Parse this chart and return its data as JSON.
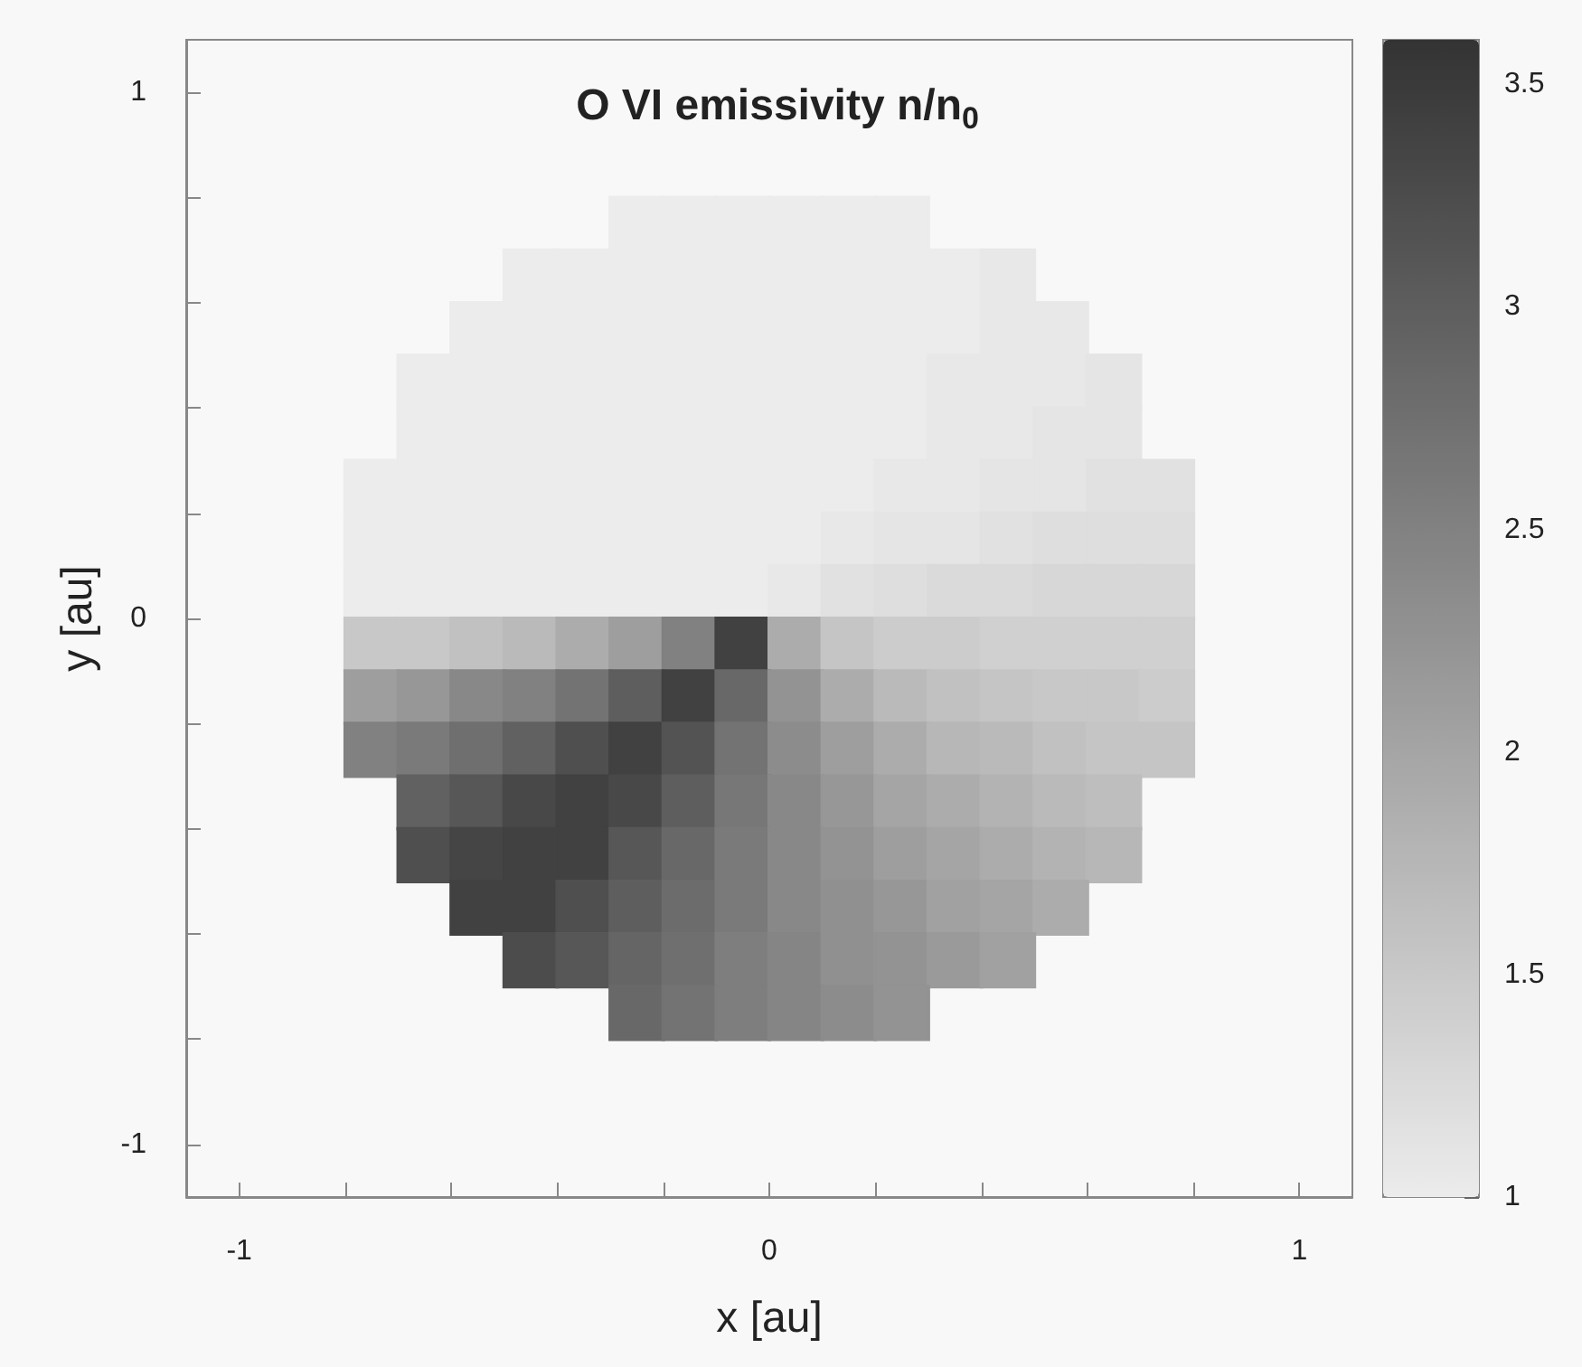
{
  "chart_data": {
    "type": "scatter",
    "marker": "square",
    "title": "O VI emissivity n/n$_{0}$",
    "xlabel": "x [au]",
    "ylabel": "y [au]",
    "xlim": [
      -1.1,
      1.1
    ],
    "xticks": [
      -1,
      {
        "value": -0.8,
        "label": null
      },
      {
        "value": -0.6,
        "label": null
      },
      {
        "value": -0.4,
        "label": null
      },
      {
        "value": -0.2,
        "label": null
      },
      0,
      {
        "value": 0.2,
        "label": null
      },
      {
        "value": 0.4,
        "label": null
      },
      {
        "value": 0.6,
        "label": null
      },
      {
        "value": 0.8,
        "label": null
      },
      1
    ],
    "ylim": [
      -1.1,
      1.1
    ],
    "yticks": [
      -1,
      {
        "value": -0.8,
        "label": null
      },
      {
        "value": -0.6,
        "label": null
      },
      {
        "value": -0.4,
        "label": null
      },
      {
        "value": -0.2,
        "label": null
      },
      0,
      {
        "value": 0.2,
        "label": null
      },
      {
        "value": 0.4,
        "label": null
      },
      {
        "value": 0.6,
        "label": null
      },
      {
        "value": 0.8,
        "label": null
      },
      1
    ],
    "clim": [
      1,
      3.6
    ],
    "cticks": [
      1,
      1.5,
      2,
      2.5,
      3,
      3.5
    ],
    "series": [
      {
        "x": [
          -0.25,
          -0.15,
          -0.05,
          0.05,
          0.15,
          0.25
        ],
        "values": [
          0.75,
          0.75,
          0.75,
          0.75,
          0.75,
          0.75
        ],
        "cvalues": [
          1,
          1,
          1,
          1,
          1,
          1
        ],
        "colors": [
          "#ececec",
          "#ececec",
          "#ececec",
          "#ececec",
          "#ececec",
          "#ececec"
        ]
      },
      {
        "x": [
          -0.45,
          -0.35,
          -0.25,
          -0.15,
          -0.05,
          0.05,
          0.15,
          0.25,
          0.35,
          0.45
        ],
        "values": [
          0.65,
          0.65,
          0.65,
          0.65,
          0.65,
          0.65,
          0.65,
          0.65,
          0.65,
          0.65
        ],
        "cvalues": [
          1,
          1,
          1,
          1,
          1,
          1,
          1,
          1,
          1,
          1.05
        ],
        "colors": [
          "#ececec",
          "#ececec",
          "#ececec",
          "#ececec",
          "#ececec",
          "#ececec",
          "#ececec",
          "#ececec",
          "#ececec",
          "#e8e8e8"
        ]
      },
      {
        "x": [
          -0.55,
          -0.45,
          -0.35,
          -0.25,
          -0.15,
          -0.05,
          0.05,
          0.15,
          0.25,
          0.35,
          0.45,
          0.55
        ],
        "values": [
          0.55,
          0.55,
          0.55,
          0.55,
          0.55,
          0.55,
          0.55,
          0.55,
          0.55,
          0.55,
          0.55,
          0.55
        ],
        "cvalues": [
          1,
          1,
          1,
          1,
          1,
          1,
          1,
          1,
          1,
          1,
          1.05,
          1.05
        ],
        "colors": [
          "#ececec",
          "#ececec",
          "#ececec",
          "#ececec",
          "#ececec",
          "#ececec",
          "#ececec",
          "#ececec",
          "#ececec",
          "#ececec",
          "#e8e8e8",
          "#e8e8e8"
        ]
      },
      {
        "x": [
          -0.65,
          -0.55,
          -0.45,
          -0.35,
          -0.25,
          -0.15,
          -0.05,
          0.05,
          0.15,
          0.25,
          0.35,
          0.45,
          0.55,
          0.65
        ],
        "values": [
          0.45,
          0.45,
          0.45,
          0.45,
          0.45,
          0.45,
          0.45,
          0.45,
          0.45,
          0.45,
          0.45,
          0.45,
          0.45,
          0.45
        ],
        "cvalues": [
          1,
          1,
          1,
          1,
          1,
          1,
          1,
          1,
          1,
          1,
          1.05,
          1.05,
          1.05,
          1.1
        ],
        "colors": [
          "#ececec",
          "#ececec",
          "#ececec",
          "#ececec",
          "#ececec",
          "#ececec",
          "#ececec",
          "#ececec",
          "#ececec",
          "#ececec",
          "#e8e8e8",
          "#e8e8e8",
          "#e8e8e8",
          "#e5e5e5"
        ]
      },
      {
        "x": [
          -0.65,
          -0.55,
          -0.45,
          -0.35,
          -0.25,
          -0.15,
          -0.05,
          0.05,
          0.15,
          0.25,
          0.35,
          0.45,
          0.55,
          0.65
        ],
        "values": [
          0.35,
          0.35,
          0.35,
          0.35,
          0.35,
          0.35,
          0.35,
          0.35,
          0.35,
          0.35,
          0.35,
          0.35,
          0.35,
          0.35
        ],
        "cvalues": [
          1,
          1,
          1,
          1,
          1,
          1,
          1,
          1,
          1,
          1,
          1.05,
          1.05,
          1.1,
          1.1
        ],
        "colors": [
          "#ececec",
          "#ececec",
          "#ececec",
          "#ececec",
          "#ececec",
          "#ececec",
          "#ececec",
          "#ececec",
          "#ececec",
          "#ececec",
          "#e8e8e8",
          "#e8e8e8",
          "#e5e5e5",
          "#e5e5e5"
        ]
      },
      {
        "x": [
          -0.75,
          -0.65,
          -0.55,
          -0.45,
          -0.35,
          -0.25,
          -0.15,
          -0.05,
          0.05,
          0.15,
          0.25,
          0.35,
          0.45,
          0.55,
          0.65,
          0.75
        ],
        "values": [
          0.25,
          0.25,
          0.25,
          0.25,
          0.25,
          0.25,
          0.25,
          0.25,
          0.25,
          0.25,
          0.25,
          0.25,
          0.25,
          0.25,
          0.25,
          0.25
        ],
        "cvalues": [
          1,
          1,
          1,
          1,
          1,
          1,
          1,
          1,
          1,
          1,
          1.05,
          1.05,
          1.1,
          1.1,
          1.15,
          1.15
        ],
        "colors": [
          "#ececec",
          "#ececec",
          "#ececec",
          "#ececec",
          "#ececec",
          "#ececec",
          "#ececec",
          "#ececec",
          "#ececec",
          "#ececec",
          "#e8e8e8",
          "#e8e8e8",
          "#e5e5e5",
          "#e5e5e5",
          "#e1e1e1",
          "#e1e1e1"
        ]
      },
      {
        "x": [
          -0.75,
          -0.65,
          -0.55,
          -0.45,
          -0.35,
          -0.25,
          -0.15,
          -0.05,
          0.05,
          0.15,
          0.25,
          0.35,
          0.45,
          0.55,
          0.65,
          0.75
        ],
        "values": [
          0.15,
          0.15,
          0.15,
          0.15,
          0.15,
          0.15,
          0.15,
          0.15,
          0.15,
          0.15,
          0.15,
          0.15,
          0.15,
          0.15,
          0.15,
          0.15
        ],
        "cvalues": [
          1,
          1,
          1,
          1,
          1,
          1,
          1,
          1,
          1,
          1.05,
          1.1,
          1.1,
          1.15,
          1.2,
          1.2,
          1.2
        ],
        "colors": [
          "#ececec",
          "#ececec",
          "#ececec",
          "#ececec",
          "#ececec",
          "#ececec",
          "#ececec",
          "#ececec",
          "#ececec",
          "#e8e8e8",
          "#e5e5e5",
          "#e5e5e5",
          "#e1e1e1",
          "#dedede",
          "#dedede",
          "#dedede"
        ]
      },
      {
        "x": [
          -0.75,
          -0.65,
          -0.55,
          -0.45,
          -0.35,
          -0.25,
          -0.15,
          -0.05,
          0.05,
          0.15,
          0.25,
          0.35,
          0.45,
          0.55,
          0.65,
          0.75
        ],
        "values": [
          0.05,
          0.05,
          0.05,
          0.05,
          0.05,
          0.05,
          0.05,
          0.05,
          0.05,
          0.05,
          0.05,
          0.05,
          0.05,
          0.05,
          0.05,
          0.05
        ],
        "cvalues": [
          1,
          1,
          1,
          1,
          1,
          1,
          1,
          1,
          1.05,
          1.15,
          1.2,
          1.25,
          1.25,
          1.3,
          1.3,
          1.3
        ],
        "colors": [
          "#ececec",
          "#ececec",
          "#ececec",
          "#ececec",
          "#ececec",
          "#ececec",
          "#ececec",
          "#ececec",
          "#e8e8e8",
          "#e1e1e1",
          "#dedede",
          "#dadada",
          "#dadada",
          "#d7d7d7",
          "#d7d7d7",
          "#d7d7d7"
        ]
      },
      {
        "x": [
          -0.75,
          -0.65,
          -0.55,
          -0.45,
          -0.35,
          -0.25,
          -0.15,
          -0.05,
          0.05,
          0.15,
          0.25,
          0.35,
          0.45,
          0.55,
          0.65,
          0.75
        ],
        "values": [
          -0.05,
          -0.05,
          -0.05,
          -0.05,
          -0.05,
          -0.05,
          -0.05,
          -0.05,
          -0.05,
          -0.05,
          -0.05,
          -0.05,
          -0.05,
          -0.05,
          -0.05,
          -0.05
        ],
        "cvalues": [
          1.5,
          1.5,
          1.6,
          1.7,
          1.9,
          2.1,
          2.5,
          3.4,
          1.9,
          1.55,
          1.45,
          1.45,
          1.4,
          1.4,
          1.4,
          1.4
        ],
        "colors": [
          "#c8c8c8",
          "#c8c8c8",
          "#c1c1c1",
          "#bababa",
          "#acacac",
          "#9e9e9e",
          "#818181",
          "#414141",
          "#acacac",
          "#c5c5c5",
          "#cccccc",
          "#cccccc",
          "#d0d0d0",
          "#d0d0d0",
          "#d0d0d0",
          "#d0d0d0"
        ]
      },
      {
        "x": [
          -0.75,
          -0.65,
          -0.55,
          -0.45,
          -0.35,
          -0.25,
          -0.15,
          -0.05,
          0.05,
          0.15,
          0.25,
          0.35,
          0.45,
          0.55,
          0.65,
          0.75
        ],
        "values": [
          -0.15,
          -0.15,
          -0.15,
          -0.15,
          -0.15,
          -0.15,
          -0.15,
          -0.15,
          -0.15,
          -0.15,
          -0.15,
          -0.15,
          -0.15,
          -0.15,
          -0.15,
          -0.15
        ],
        "cvalues": [
          2.1,
          2.2,
          2.4,
          2.5,
          2.7,
          3.0,
          3.4,
          2.85,
          2.25,
          1.9,
          1.7,
          1.6,
          1.55,
          1.5,
          1.5,
          1.45
        ],
        "colors": [
          "#9e9e9e",
          "#979797",
          "#888888",
          "#818181",
          "#737373",
          "#5e5e5e",
          "#414141",
          "#686868",
          "#939393",
          "#acacac",
          "#bababa",
          "#c1c1c1",
          "#c5c5c5",
          "#c8c8c8",
          "#c8c8c8",
          "#cccccc"
        ]
      },
      {
        "x": [
          -0.75,
          -0.65,
          -0.55,
          -0.45,
          -0.35,
          -0.25,
          -0.15,
          -0.05,
          0.05,
          0.15,
          0.25,
          0.35,
          0.45,
          0.55,
          0.65,
          0.75
        ],
        "values": [
          -0.25,
          -0.25,
          -0.25,
          -0.25,
          -0.25,
          -0.25,
          -0.25,
          -0.25,
          -0.25,
          -0.25,
          -0.25,
          -0.25,
          -0.25,
          -0.25,
          -0.25,
          -0.25
        ],
        "cvalues": [
          2.5,
          2.6,
          2.75,
          2.95,
          3.2,
          3.4,
          3.15,
          2.7,
          2.35,
          2.1,
          1.9,
          1.75,
          1.7,
          1.6,
          1.55,
          1.55
        ],
        "colors": [
          "#818181",
          "#7a7a7a",
          "#6f6f6f",
          "#616161",
          "#4f4f4f",
          "#414141",
          "#535353",
          "#737373",
          "#8c8c8c",
          "#9e9e9e",
          "#acacac",
          "#b7b7b7",
          "#bababa",
          "#c1c1c1",
          "#c5c5c5",
          "#c5c5c5"
        ]
      },
      {
        "x": [
          -0.65,
          -0.55,
          -0.45,
          -0.35,
          -0.25,
          -0.15,
          -0.05,
          0.05,
          0.15,
          0.25,
          0.35,
          0.45,
          0.55,
          0.65
        ],
        "values": [
          -0.35,
          -0.35,
          -0.35,
          -0.35,
          -0.35,
          -0.35,
          -0.35,
          -0.35,
          -0.35,
          -0.35,
          -0.35,
          -0.35,
          -0.35,
          -0.35
        ],
        "cvalues": [
          2.95,
          3.1,
          3.3,
          3.4,
          3.3,
          3.0,
          2.65,
          2.4,
          2.2,
          2.0,
          1.9,
          1.8,
          1.7,
          1.65
        ],
        "colors": [
          "#616161",
          "#575757",
          "#484848",
          "#414141",
          "#484848",
          "#5e5e5e",
          "#777777",
          "#888888",
          "#979797",
          "#a5a5a5",
          "#acacac",
          "#b3b3b3",
          "#bababa",
          "#bebebe"
        ]
      },
      {
        "x": [
          -0.65,
          -0.55,
          -0.45,
          -0.35,
          -0.25,
          -0.15,
          -0.05,
          0.05,
          0.15,
          0.25,
          0.35,
          0.45,
          0.55,
          0.65
        ],
        "values": [
          -0.45,
          -0.45,
          -0.45,
          -0.45,
          -0.45,
          -0.45,
          -0.45,
          -0.45,
          -0.45,
          -0.45,
          -0.45,
          -0.45,
          -0.45,
          -0.45
        ],
        "cvalues": [
          3.2,
          3.35,
          3.4,
          3.4,
          3.1,
          2.85,
          2.6,
          2.4,
          2.25,
          2.1,
          2.0,
          1.9,
          1.8,
          1.75
        ],
        "colors": [
          "#4f4f4f",
          "#454545",
          "#414141",
          "#414141",
          "#575757",
          "#686868",
          "#7a7a7a",
          "#888888",
          "#939393",
          "#9e9e9e",
          "#a5a5a5",
          "#acacac",
          "#b3b3b3",
          "#b7b7b7"
        ]
      },
      {
        "x": [
          -0.55,
          -0.45,
          -0.35,
          -0.25,
          -0.15,
          -0.05,
          0.05,
          0.15,
          0.25,
          0.35,
          0.45,
          0.55
        ],
        "values": [
          -0.55,
          -0.55,
          -0.55,
          -0.55,
          -0.55,
          -0.55,
          -0.55,
          -0.55,
          -0.55,
          -0.55,
          -0.55,
          -0.55
        ],
        "cvalues": [
          3.4,
          3.4,
          3.2,
          3.0,
          2.8,
          2.6,
          2.4,
          2.3,
          2.2,
          2.05,
          2.0,
          1.9
        ],
        "colors": [
          "#414141",
          "#414141",
          "#4f4f4f",
          "#5e5e5e",
          "#6c6c6c",
          "#7a7a7a",
          "#888888",
          "#909090",
          "#979797",
          "#a1a1a1",
          "#a5a5a5",
          "#acacac"
        ]
      },
      {
        "x": [
          -0.45,
          -0.35,
          -0.25,
          -0.15,
          -0.05,
          0.05,
          0.15,
          0.25,
          0.35,
          0.45
        ],
        "values": [
          -0.65,
          -0.65,
          -0.65,
          -0.65,
          -0.65,
          -0.65,
          -0.65,
          -0.65,
          -0.65,
          -0.65
        ],
        "cvalues": [
          3.25,
          3.1,
          2.9,
          2.75,
          2.55,
          2.45,
          2.3,
          2.25,
          2.15,
          2.05
        ],
        "colors": [
          "#4c4c4c",
          "#575757",
          "#656565",
          "#6f6f6f",
          "#7e7e7e",
          "#858585",
          "#909090",
          "#939393",
          "#9a9a9a",
          "#a1a1a1"
        ]
      },
      {
        "x": [
          -0.25,
          -0.15,
          -0.05,
          0.05,
          0.15,
          0.25
        ],
        "values": [
          -0.75,
          -0.75,
          -0.75,
          -0.75,
          -0.75,
          -0.75
        ],
        "cvalues": [
          2.85,
          2.7,
          2.55,
          2.45,
          2.35,
          2.25
        ],
        "colors": [
          "#686868",
          "#737373",
          "#7e7e7e",
          "#858585",
          "#8c8c8c",
          "#939393"
        ]
      }
    ]
  }
}
